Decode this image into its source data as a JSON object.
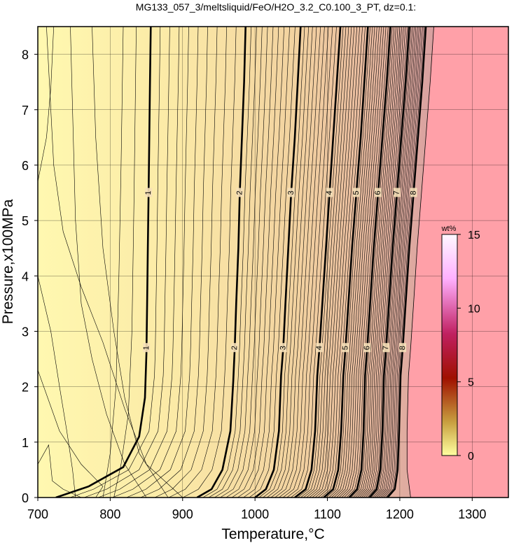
{
  "chart_data": {
    "type": "contour",
    "title": "MG133_057_3/meltsliquid/FeO/H2O_3.2_C0.100_3_PT, dz=0.1:",
    "xlabel": "Temperature,°C",
    "ylabel": "Pressure,x100MPa",
    "xlim": [
      700,
      1350
    ],
    "ylim": [
      0,
      8.5
    ],
    "xticks": [
      "700",
      "800",
      "900",
      "1000",
      "1100",
      "1200",
      "1300"
    ],
    "yticks": [
      "0",
      "1",
      "2",
      "3",
      "4",
      "5",
      "6",
      "7",
      "8"
    ],
    "grid": true,
    "colorbar": {
      "unit": "wt%",
      "range": [
        0,
        15
      ],
      "ticks": [
        "0",
        "5",
        "10",
        "15"
      ],
      "colors": [
        "#ffffa0",
        "#c8a040",
        "#a01000",
        "#c02060",
        "#ffb0ff",
        "#fff8ff"
      ]
    },
    "filled_above_liquidus_color": "#ffa0a8",
    "contour_interval": 0.1,
    "major_contours": [
      {
        "level": 1,
        "label": "1",
        "points": [
          [
            725,
            0
          ],
          [
            770,
            0.2
          ],
          [
            818,
            0.55
          ],
          [
            840,
            1.1
          ],
          [
            848,
            1.8
          ],
          [
            850,
            2.6
          ],
          [
            851,
            3.5
          ],
          [
            852,
            4.5
          ],
          [
            853,
            5.5
          ],
          [
            854,
            6.5
          ],
          [
            855,
            7.5
          ],
          [
            856,
            8.5
          ]
        ]
      },
      {
        "level": 2,
        "label": "2",
        "points": [
          [
            920,
            0
          ],
          [
            940,
            0.15
          ],
          [
            955,
            0.5
          ],
          [
            966,
            1.2
          ],
          [
            970,
            2.1
          ],
          [
            972,
            2.7
          ],
          [
            974,
            3.5
          ],
          [
            977,
            4.5
          ],
          [
            979,
            5.5
          ],
          [
            982,
            6.5
          ],
          [
            985,
            7.5
          ],
          [
            987,
            8.5
          ]
        ]
      },
      {
        "level": 3,
        "label": "3",
        "points": [
          [
            1000,
            0
          ],
          [
            1015,
            0.15
          ],
          [
            1026,
            0.5
          ],
          [
            1033,
            1.2
          ],
          [
            1036,
            2.2
          ],
          [
            1039,
            2.7
          ],
          [
            1042,
            3.5
          ],
          [
            1046,
            4.5
          ],
          [
            1050,
            5.5
          ],
          [
            1055,
            6.5
          ],
          [
            1059,
            7.5
          ],
          [
            1063,
            8.5
          ]
        ]
      },
      {
        "level": 4,
        "label": "4",
        "points": [
          [
            1055,
            0
          ],
          [
            1070,
            0.15
          ],
          [
            1078,
            0.5
          ],
          [
            1083,
            1.2
          ],
          [
            1086,
            2.2
          ],
          [
            1089,
            2.7
          ],
          [
            1093,
            3.5
          ],
          [
            1098,
            4.5
          ],
          [
            1103,
            5.5
          ],
          [
            1108,
            6.5
          ],
          [
            1113,
            7.5
          ],
          [
            1118,
            8.5
          ]
        ]
      },
      {
        "level": 5,
        "label": "5",
        "points": [
          [
            1095,
            0
          ],
          [
            1108,
            0.15
          ],
          [
            1115,
            0.5
          ],
          [
            1119,
            1.2
          ],
          [
            1122,
            2.2
          ],
          [
            1125,
            2.7
          ],
          [
            1129,
            3.5
          ],
          [
            1134,
            4.5
          ],
          [
            1140,
            5.5
          ],
          [
            1146,
            6.5
          ],
          [
            1151,
            7.5
          ],
          [
            1156,
            8.5
          ]
        ]
      },
      {
        "level": 6,
        "label": "6",
        "points": [
          [
            1130,
            0
          ],
          [
            1141,
            0.15
          ],
          [
            1147,
            0.5
          ],
          [
            1150,
            1.2
          ],
          [
            1152,
            2.2
          ],
          [
            1155,
            2.7
          ],
          [
            1159,
            3.5
          ],
          [
            1164,
            4.5
          ],
          [
            1170,
            5.5
          ],
          [
            1176,
            6.5
          ],
          [
            1182,
            7.5
          ],
          [
            1187,
            8.5
          ]
        ]
      },
      {
        "level": 7,
        "label": "7",
        "points": [
          [
            1158,
            0
          ],
          [
            1168,
            0.15
          ],
          [
            1173,
            0.5
          ],
          [
            1176,
            1.2
          ],
          [
            1178,
            2.2
          ],
          [
            1181,
            2.7
          ],
          [
            1185,
            3.5
          ],
          [
            1190,
            4.5
          ],
          [
            1196,
            5.5
          ],
          [
            1202,
            6.5
          ],
          [
            1208,
            7.5
          ],
          [
            1213,
            8.5
          ]
        ]
      },
      {
        "level": 8,
        "label": "8",
        "points": [
          [
            1183,
            0
          ],
          [
            1193,
            0.15
          ],
          [
            1197,
            0.5
          ],
          [
            1199,
            1.2
          ],
          [
            1201,
            2.2
          ],
          [
            1204,
            2.7
          ],
          [
            1208,
            3.5
          ],
          [
            1213,
            4.5
          ],
          [
            1219,
            5.5
          ],
          [
            1225,
            6.5
          ],
          [
            1231,
            7.5
          ],
          [
            1236,
            8.5
          ]
        ]
      }
    ],
    "liquidus_boundary": [
      [
        1215,
        0
      ],
      [
        1210,
        0.5
      ],
      [
        1210,
        1.2
      ],
      [
        1212,
        2.2
      ],
      [
        1215,
        2.7
      ],
      [
        1219,
        3.5
      ],
      [
        1224,
        4.5
      ],
      [
        1230,
        5.5
      ],
      [
        1236,
        6.5
      ],
      [
        1242,
        7.5
      ],
      [
        1247,
        8.5
      ]
    ]
  }
}
